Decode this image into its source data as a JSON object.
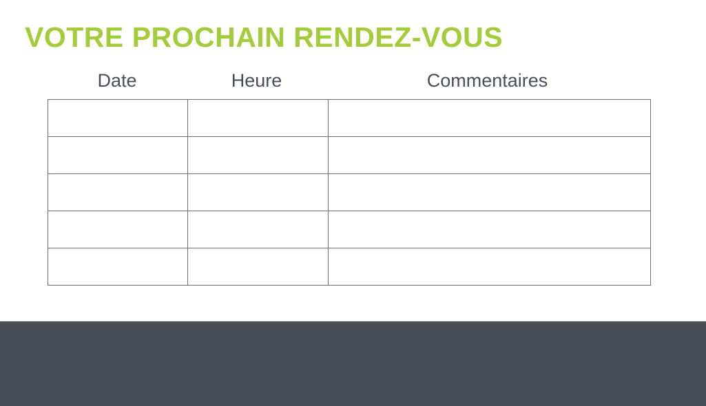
{
  "title": "VOTRE PROCHAIN RENDEZ-VOUS",
  "colors": {
    "title": "#a3cc3a",
    "footer": "#4a4e57",
    "text": "#4b4e57",
    "lines": "#6b6e75"
  },
  "table": {
    "columns": [
      "Date",
      "Heure",
      "Commentaires"
    ],
    "rows": [
      [
        "",
        "",
        ""
      ],
      [
        "",
        "",
        ""
      ],
      [
        "",
        "",
        ""
      ],
      [
        "",
        "",
        ""
      ],
      [
        "",
        "",
        ""
      ]
    ]
  }
}
